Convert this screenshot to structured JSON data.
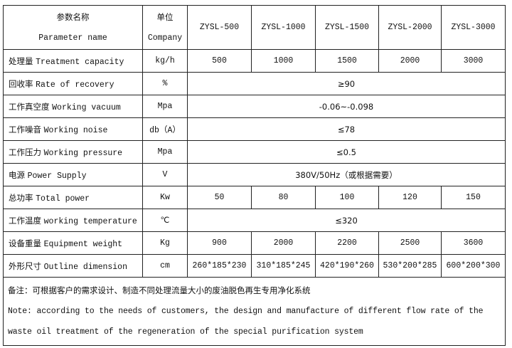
{
  "header": {
    "param_cn": "参数名称",
    "param_en": "Parameter name",
    "unit_cn": "单位",
    "unit_en": "Company",
    "models": [
      "ZYSL-500",
      "ZYSL-1000",
      "ZYSL-1500",
      "ZYSL-2000",
      "ZYSL-3000"
    ]
  },
  "rows": [
    {
      "cn": "处理量",
      "en": "Treatment capacity",
      "unit": "kg/h",
      "values": [
        "500",
        "1000",
        "1500",
        "2000",
        "3000"
      ]
    },
    {
      "cn": "回收率",
      "en": "Rate of recovery",
      "unit": "%",
      "merged": "≥90"
    },
    {
      "cn": "工作真空度",
      "en": "Working vacuum",
      "unit": "Mpa",
      "merged": "-0.06~-0.098"
    },
    {
      "cn": "工作噪音",
      "en": "Working noise",
      "unit": "db（A）",
      "merged": "≤78"
    },
    {
      "cn": "工作压力",
      "en": "Working pressure",
      "unit": "Mpa",
      "merged": "≤0.5"
    },
    {
      "cn": "电源",
      "en": "Power Supply",
      "unit": "V",
      "merged": "380V/50Hz（或根据需要）"
    },
    {
      "cn": "总功率",
      "en": "Total power",
      "unit": "Kw",
      "values": [
        "50",
        "80",
        "100",
        "120",
        "150"
      ]
    },
    {
      "cn": "工作温度",
      "en": "working temperature",
      "unit": "℃",
      "merged": "≤320"
    },
    {
      "cn": "设备重量",
      "en": "Equipment weight",
      "unit": "Kg",
      "values": [
        "900",
        "2000",
        "2200",
        "2500",
        "3600"
      ]
    },
    {
      "cn": "外形尺寸",
      "en": "Outline dimension",
      "unit": "cm",
      "values": [
        "260*185*230",
        "310*185*245",
        "420*190*260",
        "530*200*285",
        "600*200*300"
      ]
    }
  ],
  "note": {
    "cn": "备注：可根据客户的需求设计、制造不同处理流量大小的废油脱色再生专用净化系统",
    "en": "Note: according to the needs of customers, the design and manufacture of different flow rate of the waste oil treatment of the regeneration of the special purification system"
  }
}
